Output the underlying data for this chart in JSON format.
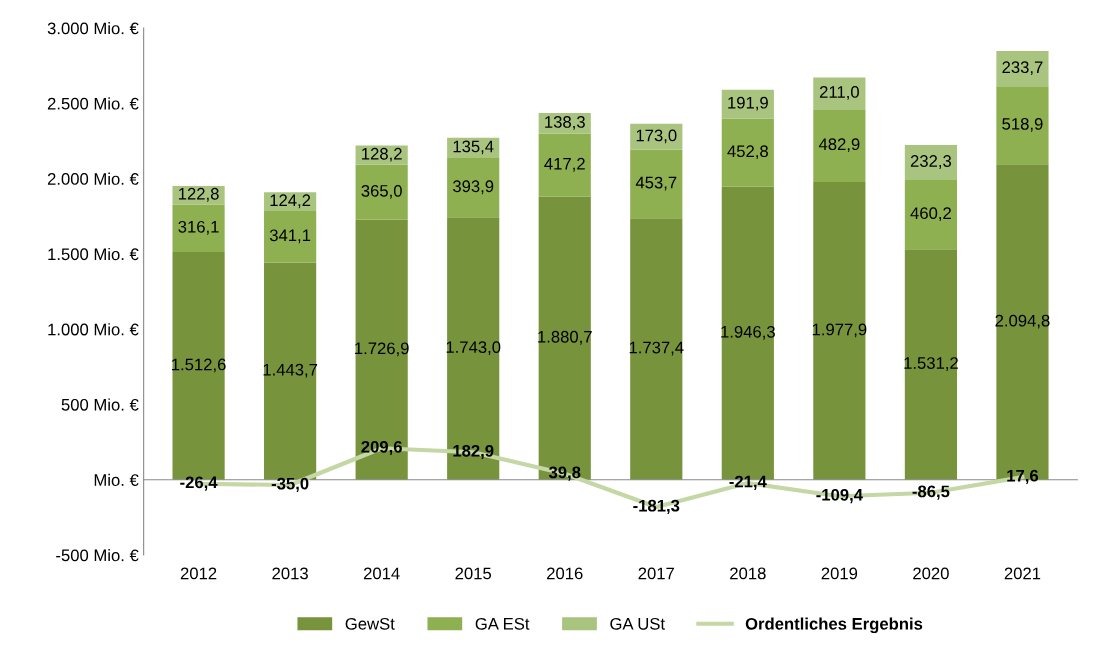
{
  "chart_data": {
    "type": "bar",
    "stacked": true,
    "categories": [
      "2012",
      "2013",
      "2014",
      "2015",
      "2016",
      "2017",
      "2018",
      "2019",
      "2020",
      "2021"
    ],
    "series": [
      {
        "name": "GewSt",
        "color": "#77933c",
        "values": [
          1512.6,
          1443.7,
          1726.9,
          1743.0,
          1880.7,
          1737.4,
          1946.3,
          1977.9,
          1531.2,
          2094.8
        ],
        "value_labels": [
          "1.512,6",
          "1.443,7",
          "1.726,9",
          "1.743,0",
          "1.880,7",
          "1.737,4",
          "1.946,3",
          "1.977,9",
          "1.531,2",
          "2.094,8"
        ]
      },
      {
        "name": "GA ESt",
        "color": "#8fb050",
        "values": [
          316.1,
          341.1,
          365.0,
          393.9,
          417.2,
          453.7,
          452.8,
          482.9,
          460.2,
          518.9
        ],
        "value_labels": [
          "316,1",
          "341,1",
          "365,0",
          "393,9",
          "417,2",
          "453,7",
          "452,8",
          "482,9",
          "460,2",
          "518,9"
        ]
      },
      {
        "name": "GA USt",
        "color": "#a9c47f",
        "values": [
          122.8,
          124.2,
          128.2,
          135.4,
          138.3,
          173.0,
          191.9,
          211.0,
          232.3,
          233.7
        ],
        "value_labels": [
          "122,8",
          "124,2",
          "128,2",
          "135,4",
          "138,3",
          "173,0",
          "191,9",
          "211,0",
          "232,3",
          "233,7"
        ]
      },
      {
        "name": "Ordentliches Ergebnis",
        "type": "line",
        "color": "#c4d7a4",
        "values": [
          -26.4,
          -35.0,
          209.6,
          182.9,
          39.8,
          -181.3,
          -21.4,
          -109.4,
          -86.5,
          17.6
        ],
        "value_labels": [
          "-26,4",
          "-35,0",
          "209,6",
          "182,9",
          "39,8",
          "-181,3",
          "-21,4",
          "-109,4",
          "-86,5",
          "17,6"
        ]
      }
    ],
    "ylim": [
      -500,
      3000
    ],
    "yticks": [
      {
        "value": -500,
        "label": "-500 Mio. €"
      },
      {
        "value": 0,
        "label": "Mio. €"
      },
      {
        "value": 500,
        "label": "500 Mio. €"
      },
      {
        "value": 1000,
        "label": "1.000 Mio. €"
      },
      {
        "value": 1500,
        "label": "1.500 Mio. €"
      },
      {
        "value": 2000,
        "label": "2.000 Mio. €"
      },
      {
        "value": 2500,
        "label": "2.500 Mio. €"
      },
      {
        "value": 3000,
        "label": "3.000 Mio. €"
      }
    ],
    "legend": "bottom"
  }
}
